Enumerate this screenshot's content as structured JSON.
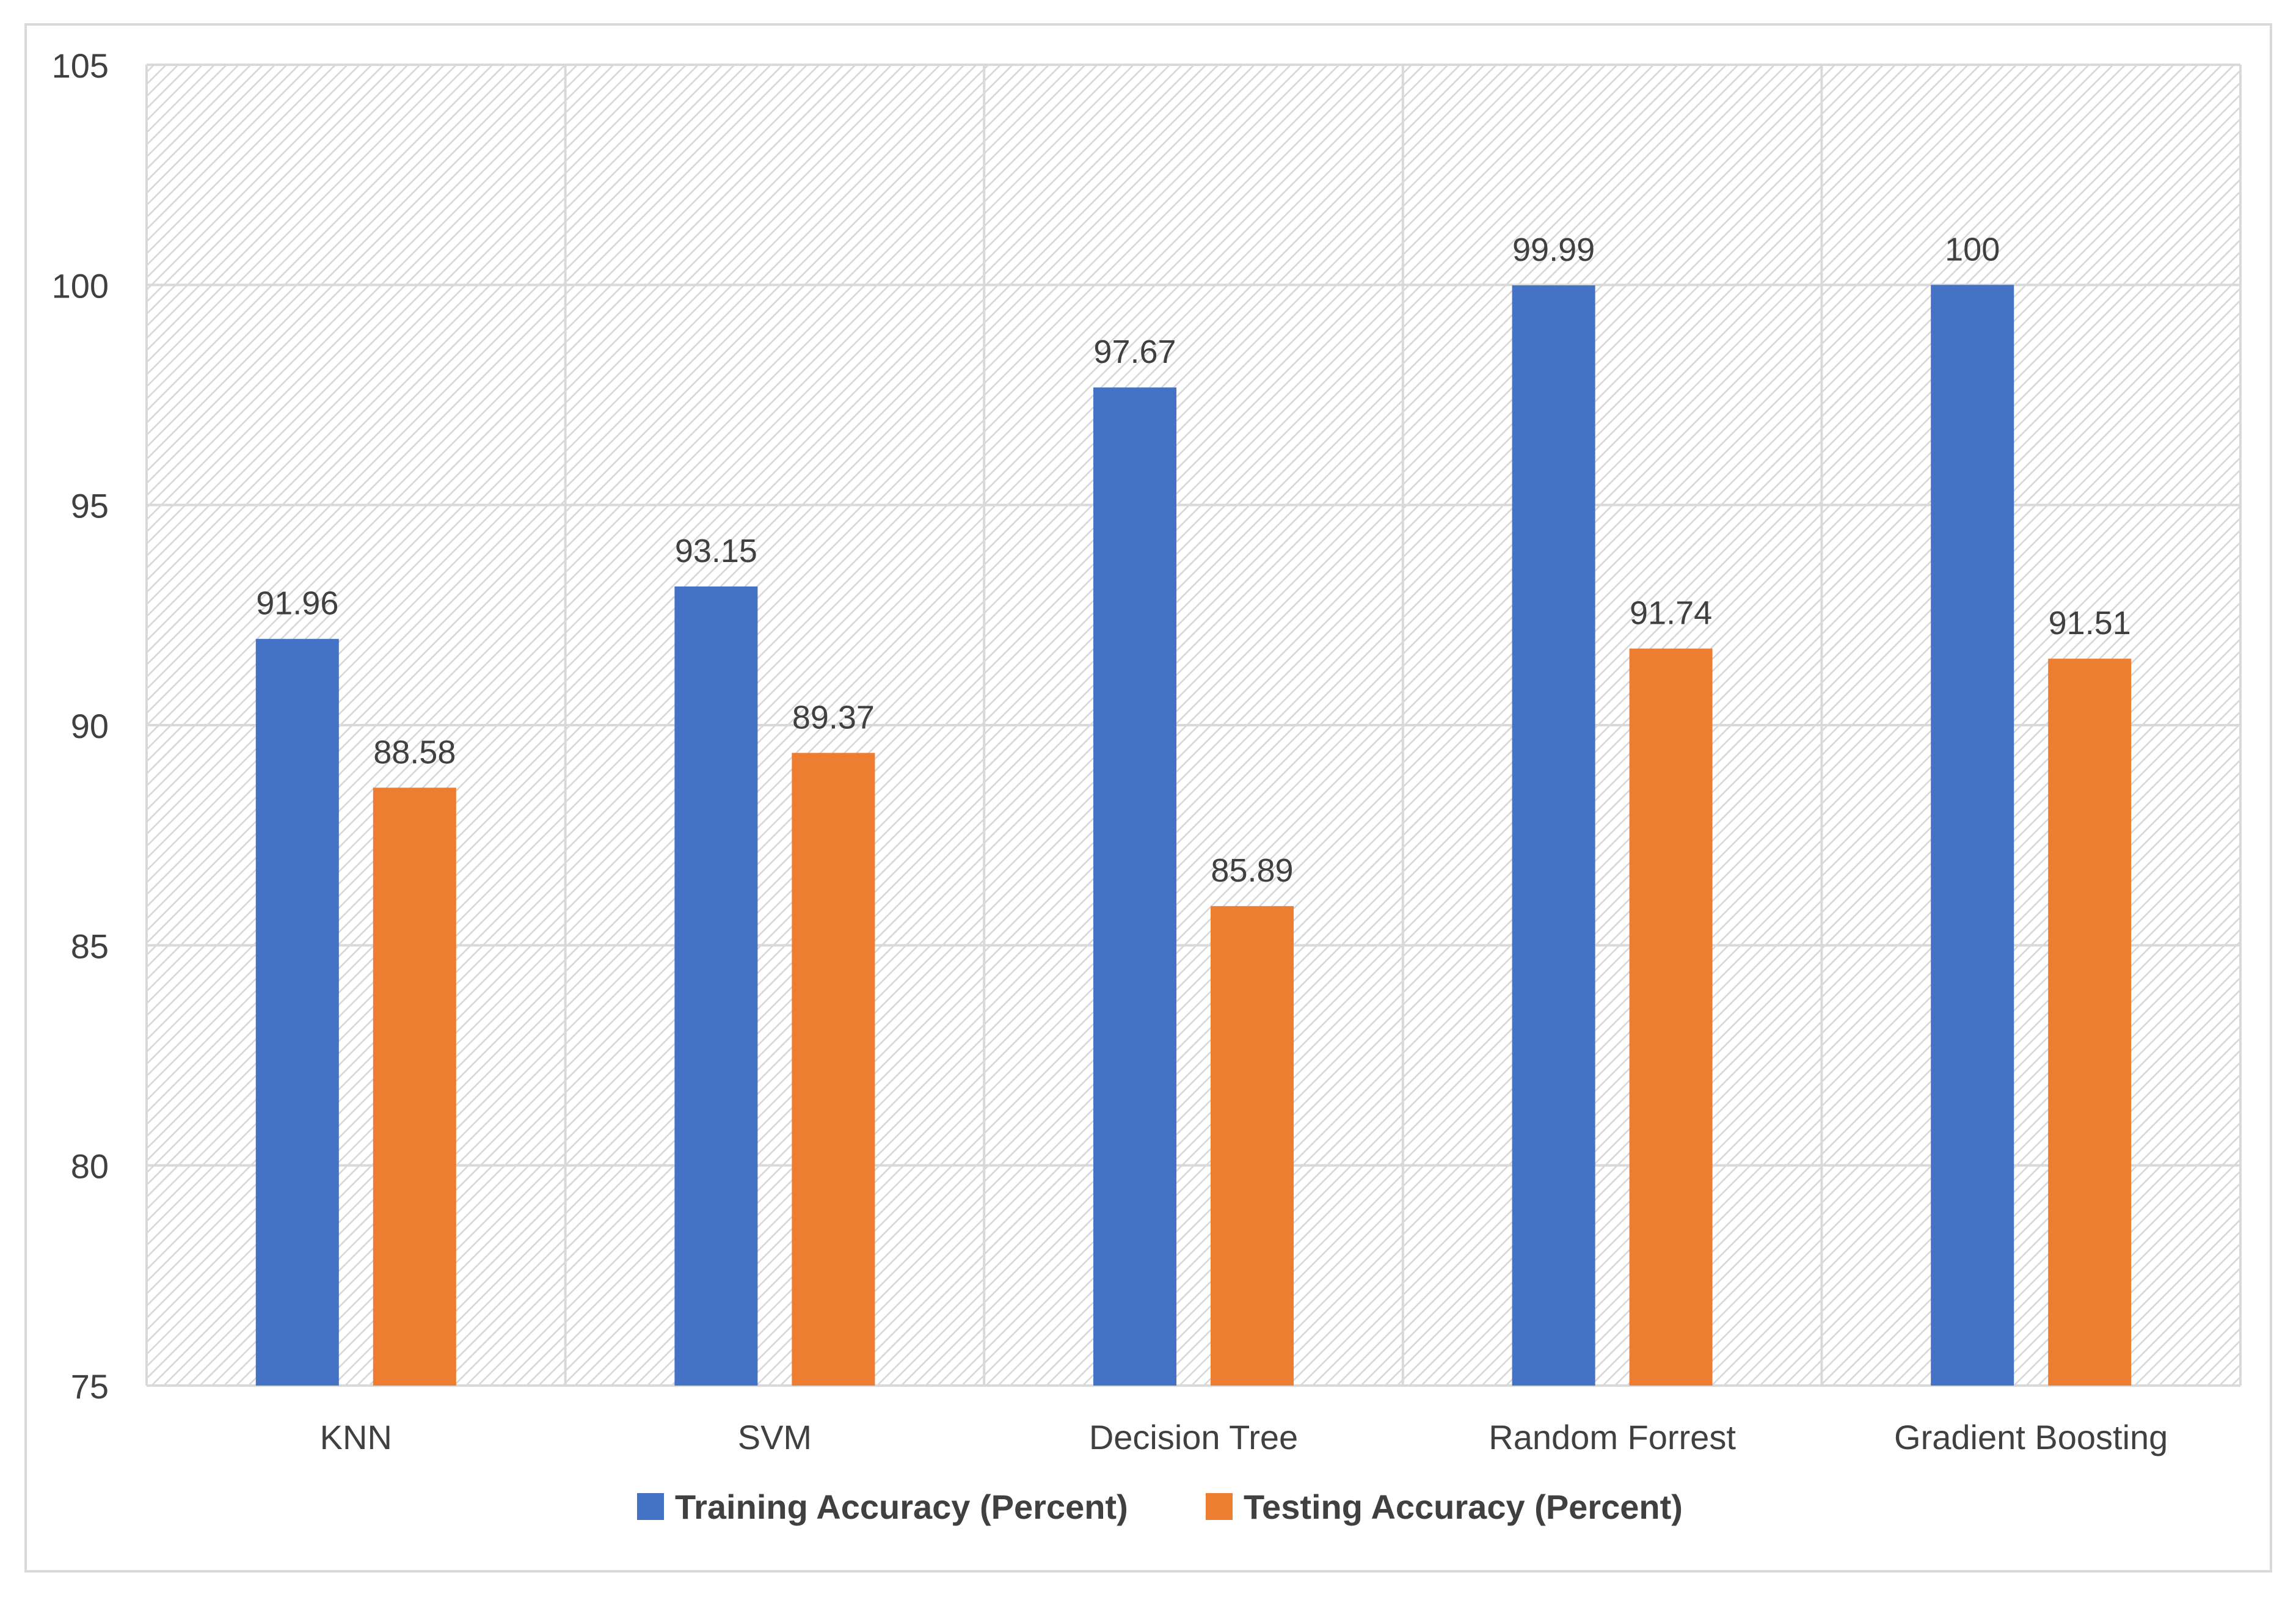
{
  "chart_data": {
    "type": "bar",
    "title": "",
    "xlabel": "",
    "ylabel": "",
    "categories": [
      "KNN",
      "SVM",
      "Decision Tree",
      "Random Forrest",
      "Gradient Boosting"
    ],
    "series": [
      {
        "name": "Training Accuracy (Percent)",
        "color": "#4472C4",
        "values": [
          91.96,
          93.15,
          97.67,
          99.99,
          100
        ],
        "labels": [
          "91.96",
          "93.15",
          "97.67",
          "99.99",
          "100"
        ]
      },
      {
        "name": "Testing Accuracy (Percent)",
        "color": "#ED7D31",
        "values": [
          88.58,
          89.37,
          85.89,
          91.74,
          91.51
        ],
        "labels": [
          "88.58",
          "89.37",
          "85.89",
          "91.74",
          "91.51"
        ]
      }
    ],
    "ylim": [
      75,
      105
    ],
    "yticks": [
      75,
      80,
      85,
      90,
      95,
      100,
      105
    ],
    "grid": true,
    "legend": "bottom"
  }
}
